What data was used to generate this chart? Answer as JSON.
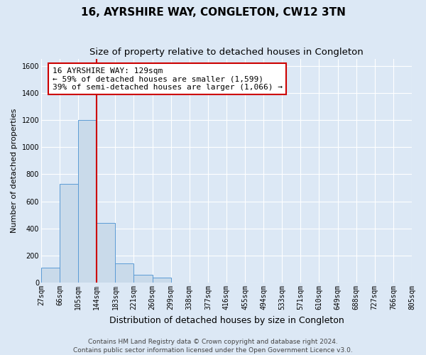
{
  "title": "16, AYRSHIRE WAY, CONGLETON, CW12 3TN",
  "subtitle": "Size of property relative to detached houses in Congleton",
  "xlabel": "Distribution of detached houses by size in Congleton",
  "ylabel": "Number of detached properties",
  "footer_line1": "Contains HM Land Registry data © Crown copyright and database right 2024.",
  "footer_line2": "Contains public sector information licensed under the Open Government Licence v3.0.",
  "bin_labels": [
    "27sqm",
    "66sqm",
    "105sqm",
    "144sqm",
    "183sqm",
    "221sqm",
    "260sqm",
    "299sqm",
    "338sqm",
    "377sqm",
    "416sqm",
    "455sqm",
    "494sqm",
    "533sqm",
    "571sqm",
    "610sqm",
    "649sqm",
    "688sqm",
    "727sqm",
    "766sqm",
    "805sqm"
  ],
  "bar_values": [
    110,
    730,
    1200,
    440,
    140,
    60,
    35,
    0,
    0,
    0,
    0,
    0,
    0,
    0,
    0,
    0,
    0,
    0,
    0,
    0
  ],
  "bar_color": "#c9daea",
  "bar_edge_color": "#5b9bd5",
  "property_line_x": 3,
  "property_line_color": "#cc0000",
  "annotation_text": "16 AYRSHIRE WAY: 129sqm\n← 59% of detached houses are smaller (1,599)\n39% of semi-detached houses are larger (1,066) →",
  "annotation_box_color": "#cc0000",
  "ylim": [
    0,
    1650
  ],
  "yticks": [
    0,
    200,
    400,
    600,
    800,
    1000,
    1200,
    1400,
    1600
  ],
  "background_color": "#dce8f5",
  "plot_background": "#dce8f5",
  "grid_color": "#ffffff",
  "title_fontsize": 11,
  "subtitle_fontsize": 9.5,
  "ylabel_fontsize": 8,
  "xlabel_fontsize": 9,
  "tick_fontsize": 7,
  "footer_fontsize": 6.5,
  "annotation_fontsize": 8
}
